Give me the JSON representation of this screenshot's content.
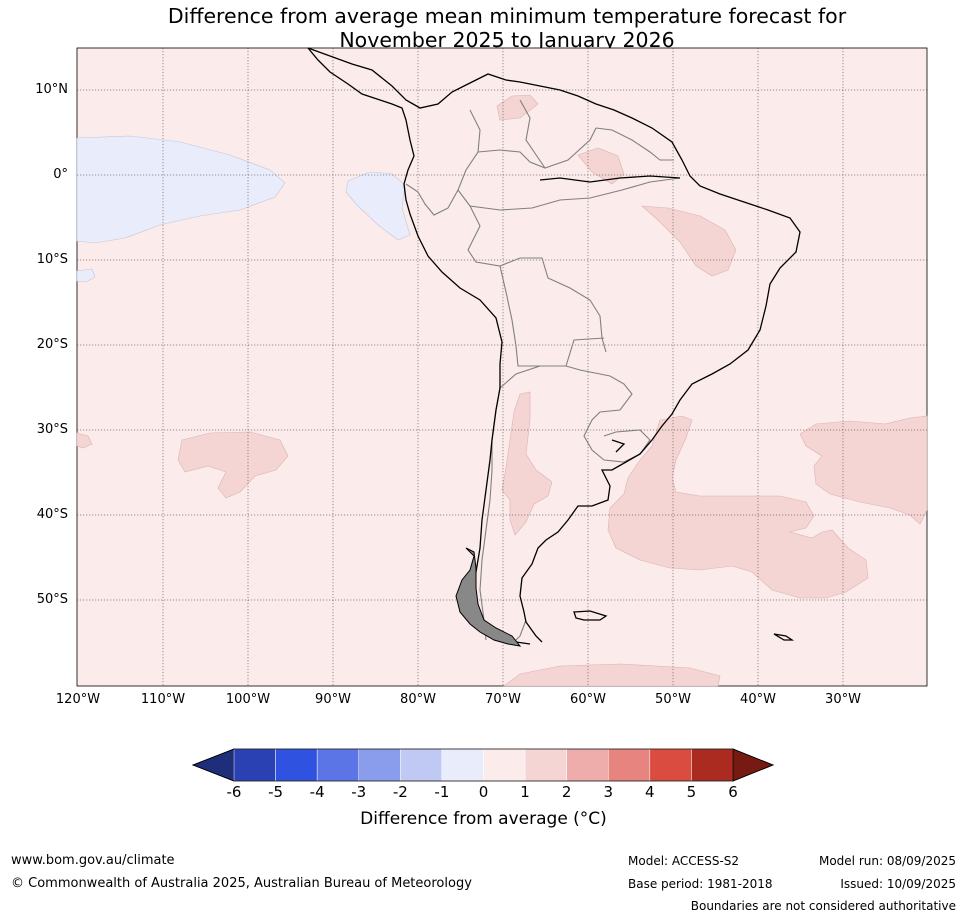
{
  "title_line1": "Difference from average mean minimum temperature forecast for",
  "title_line2": "November 2025 to January 2026",
  "lat_labels": [
    "10°N",
    "0°",
    "10°S",
    "20°S",
    "30°S",
    "40°S",
    "50°S"
  ],
  "lon_labels": [
    "120°W",
    "110°W",
    "100°W",
    "90°W",
    "80°W",
    "70°W",
    "60°W",
    "50°W",
    "40°W",
    "30°W"
  ],
  "colorbar": {
    "ticks": [
      "-6",
      "-5",
      "-4",
      "-3",
      "-2",
      "-1",
      "0",
      "1",
      "2",
      "3",
      "4",
      "5",
      "6"
    ],
    "colors": [
      "#1f2e7a",
      "#2a41b3",
      "#2f53e0",
      "#5b75e6",
      "#8a9ded",
      "#c0c8f4",
      "#e9ecfb",
      "#fbebea",
      "#f5d5d3",
      "#eeadaa",
      "#e8847f",
      "#db4c40",
      "#ac2b20",
      "#761a12"
    ],
    "label": "Difference from average (°C)"
  },
  "map_colors": {
    "background": "#fbebea",
    "warm_anomaly": "#f5d5d3",
    "cool_anomaly": "#e9ecfb",
    "coastline": "#000000",
    "borders": "#808080"
  },
  "footer": {
    "website": "www.bom.gov.au/climate",
    "copyright": "© Commonwealth of Australia 2025, Australian Bureau of Meteorology",
    "model": "Model: ACCESS-S2",
    "base_period": "Base period: 1981-2018",
    "model_run": "Model run: 08/09/2025",
    "issued": "Issued: 10/09/2025",
    "disclaimer": "Boundaries are not considered authoritative"
  }
}
